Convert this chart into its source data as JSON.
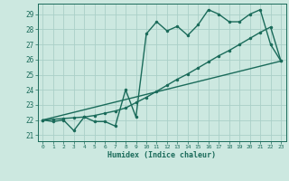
{
  "title": "",
  "xlabel": "Humidex (Indice chaleur)",
  "background_color": "#cce8e0",
  "line_color": "#1a6b5a",
  "grid_color": "#aacfc8",
  "xlim": [
    -0.5,
    23.5
  ],
  "ylim": [
    20.6,
    29.7
  ],
  "yticks": [
    21,
    22,
    23,
    24,
    25,
    26,
    27,
    28,
    29
  ],
  "xticks": [
    0,
    1,
    2,
    3,
    4,
    5,
    6,
    7,
    8,
    9,
    10,
    11,
    12,
    13,
    14,
    15,
    16,
    17,
    18,
    19,
    20,
    21,
    22,
    23
  ],
  "line1_x": [
    0,
    1,
    2,
    3,
    4,
    5,
    6,
    7,
    8,
    9,
    10,
    11,
    12,
    13,
    14,
    15,
    16,
    17,
    18,
    19,
    20,
    21,
    22,
    23
  ],
  "line1_y": [
    22.0,
    21.9,
    22.0,
    21.3,
    22.2,
    21.9,
    21.9,
    21.6,
    24.0,
    22.2,
    27.7,
    28.5,
    27.9,
    28.2,
    27.6,
    28.3,
    29.3,
    29.0,
    28.5,
    28.5,
    29.0,
    29.3,
    27.0,
    25.9
  ],
  "line2_x": [
    0,
    1,
    2,
    3,
    4,
    5,
    6,
    7,
    8,
    9,
    10,
    11,
    12,
    13,
    14,
    15,
    16,
    17,
    18,
    19,
    20,
    21,
    22,
    23
  ],
  "line2_y": [
    22.0,
    22.05,
    22.1,
    22.15,
    22.2,
    22.3,
    22.45,
    22.6,
    22.8,
    23.15,
    23.5,
    23.9,
    24.3,
    24.7,
    25.05,
    25.45,
    25.85,
    26.25,
    26.6,
    27.0,
    27.4,
    27.8,
    28.15,
    25.9
  ],
  "line3_x": [
    0,
    23
  ],
  "line3_y": [
    22.0,
    25.9
  ],
  "marker_size": 2.5,
  "linewidth": 1.0
}
